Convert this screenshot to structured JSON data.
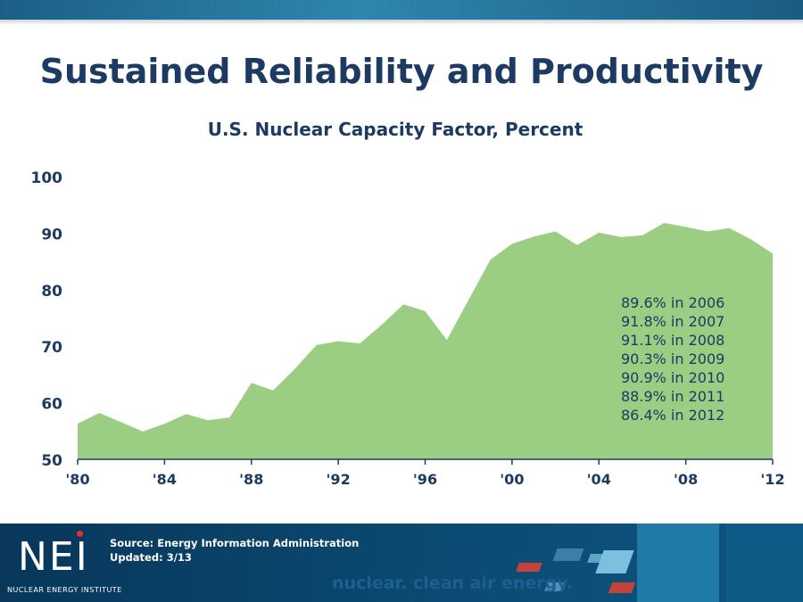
{
  "slide": {
    "title": "Sustained Reliability and Productivity"
  },
  "chart_data": {
    "type": "area",
    "title": "U.S. Nuclear Capacity Factor, Percent",
    "xlabel": "",
    "ylabel": "",
    "x": [
      1980,
      1981,
      1982,
      1983,
      1984,
      1985,
      1986,
      1987,
      1988,
      1989,
      1990,
      1991,
      1992,
      1993,
      1994,
      1995,
      1996,
      1997,
      1998,
      1999,
      2000,
      2001,
      2002,
      2003,
      2004,
      2005,
      2006,
      2007,
      2008,
      2009,
      2010,
      2011,
      2012
    ],
    "series": [
      {
        "values": [
          56.3,
          58.2,
          56.6,
          54.9,
          56.3,
          58.0,
          56.9,
          57.4,
          63.5,
          62.2,
          66.0,
          70.2,
          70.9,
          70.5,
          73.8,
          77.4,
          76.2,
          71.1,
          78.2,
          85.3,
          88.1,
          89.4,
          90.3,
          87.9,
          90.1,
          89.3,
          89.6,
          91.8,
          91.1,
          90.3,
          90.9,
          88.9,
          86.4
        ],
        "color": "#9bce82"
      }
    ],
    "ylim": [
      50,
      100
    ],
    "yticks": [
      "100",
      "90",
      "80",
      "70",
      "60",
      "50"
    ],
    "xticks": [
      "'80",
      "'84",
      "'88",
      "'92",
      "'96",
      "'00",
      "'04",
      "'08",
      "'12"
    ],
    "annotations": [
      "89.6% in 2006",
      "91.8% in 2007",
      "91.1% in 2008",
      "90.3% in 2009",
      "90.9% in 2010",
      "88.9% in 2011",
      "86.4% in 2012"
    ],
    "grid": false
  },
  "footer": {
    "source_line": "Source: Energy Information Administration",
    "updated_line": "Updated:  3/13",
    "logo_text": "NEI",
    "logo_subtext": "NUCLEAR ENERGY INSTITUTE",
    "tagline": "nuclear. clean air energy."
  },
  "colors": {
    "title": "#1d3a63",
    "area": "#9bce82",
    "footer": "#0b4a72"
  }
}
